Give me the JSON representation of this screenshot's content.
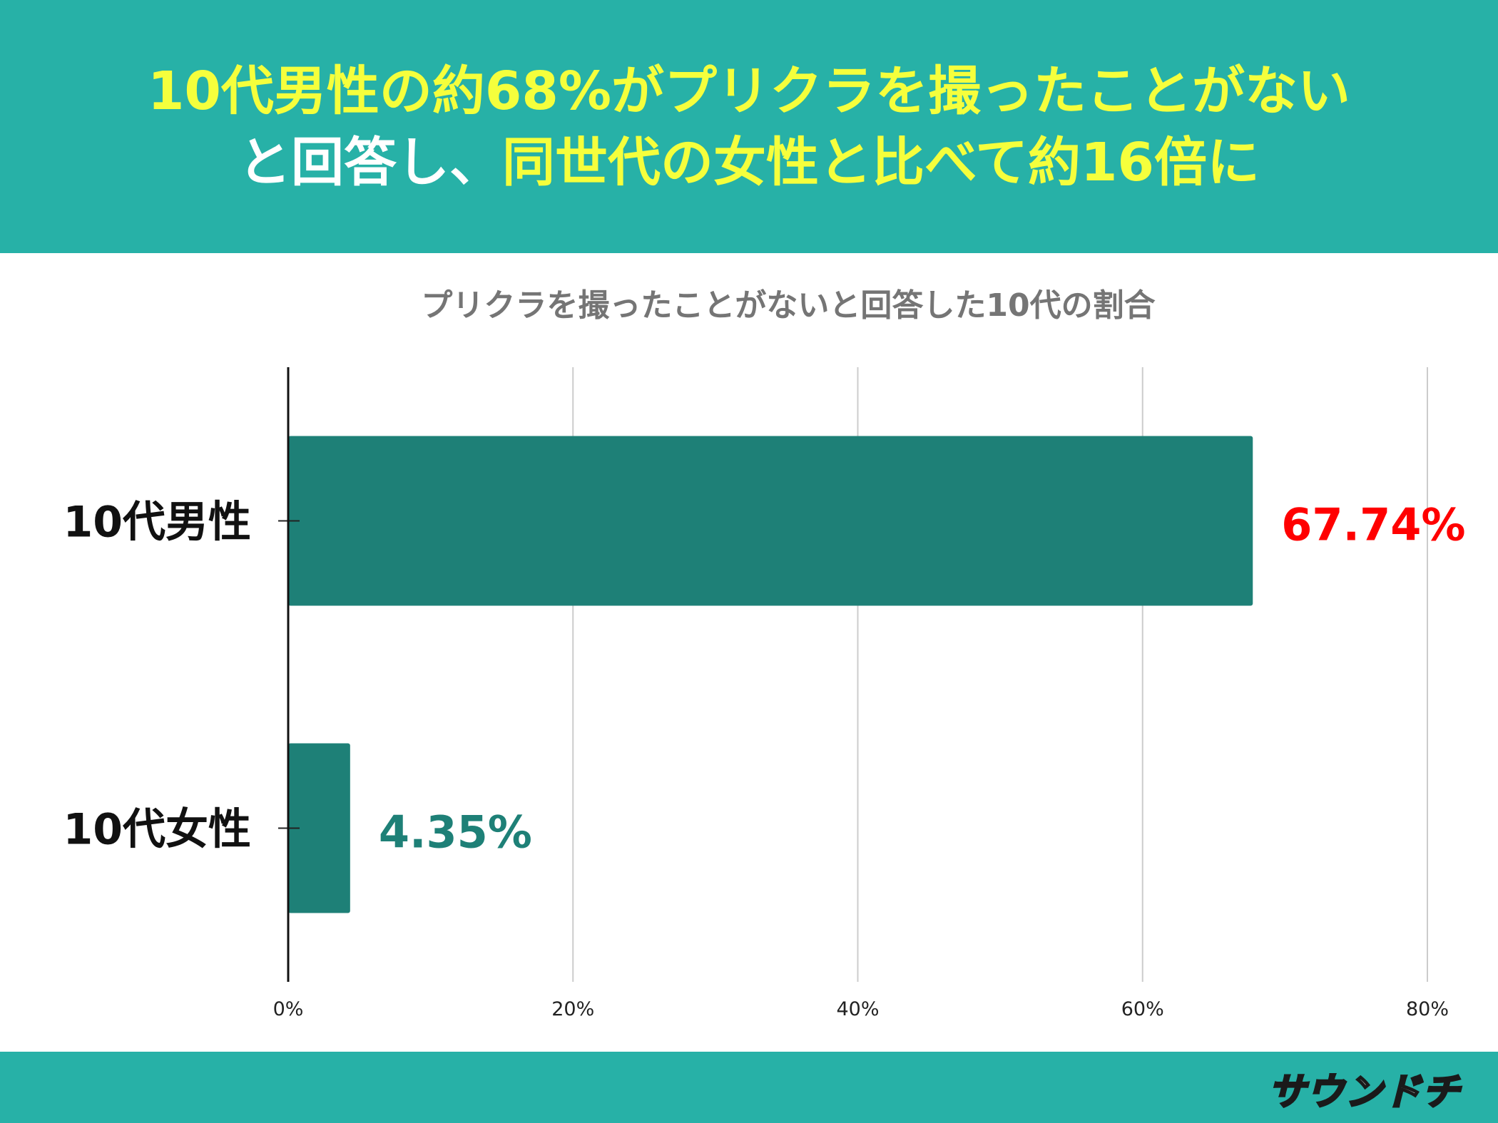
{
  "headline": {
    "line1": [
      {
        "text": "10代男性の約68%がプリクラを撮ったことがない",
        "color": "yellow"
      }
    ],
    "line2": [
      {
        "text": "と回答し、",
        "color": "white"
      },
      {
        "text": "同世代の女性と比べて約16倍に",
        "color": "yellow"
      }
    ]
  },
  "colors": {
    "header_bg": "#27b1a7",
    "bar": "#1e8077",
    "male_label": "#ff0000",
    "female_label": "#1e8077",
    "headline_yellow": "#f5ff3c"
  },
  "logo": {
    "text": "サウンドチ"
  },
  "chart_data": {
    "type": "bar",
    "orientation": "horizontal",
    "title": "プリクラを撮ったことがないと回答した10代の割合",
    "categories": [
      "10代男性",
      "10代女性"
    ],
    "values": [
      67.74,
      4.35
    ],
    "value_labels": [
      "67.74%",
      "4.35%"
    ],
    "xlim": [
      0,
      80
    ],
    "xticks": [
      0,
      20,
      40,
      60,
      80
    ],
    "xtick_labels": [
      "0%",
      "20%",
      "40%",
      "60%",
      "80%"
    ],
    "grid": true,
    "legend": "none"
  }
}
